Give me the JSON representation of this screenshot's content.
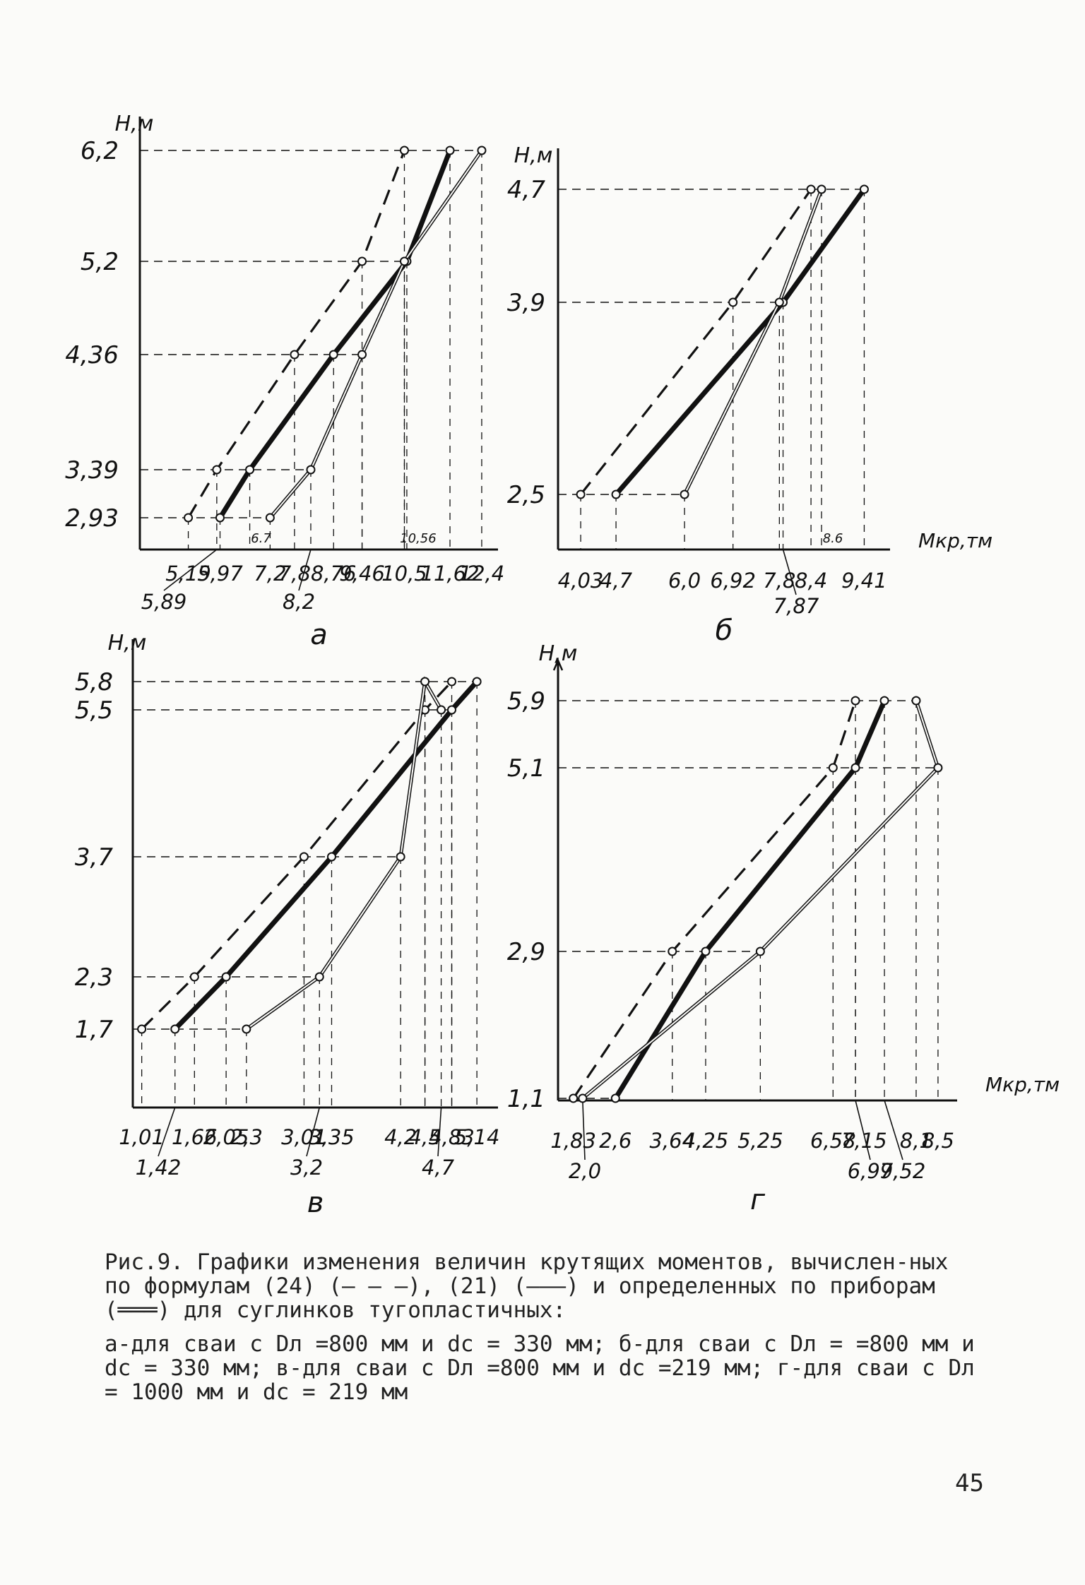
{
  "caption": {
    "line1": "Рис.9. Графики изменения величин крутящих моментов, вычислен-ных по формулам (24) (— — —), (21) (———) и определенных по приборам (═══) для суглинков тугопластичных:",
    "line2": "а-для сваи с Dл =800 мм и dс = 330 мм; б-для сваи с Dл = =800 мм и dс = 330 мм; в-для сваи с Dл =800 мм и dс =219 мм; г-для сваи с Dл = 1000 мм и dс = 219 мм"
  },
  "page_number": "45",
  "colors": {
    "ink": "#111111",
    "paper": "#fbfbf9"
  },
  "chart_data": [
    {
      "type": "line",
      "panel_label": "а",
      "ylabel": "Н,м",
      "xlabel": "",
      "yticks": [
        "6,2",
        "5,2",
        "4,36",
        "3,39",
        "2,93"
      ],
      "xticks_row1": [
        "5,19",
        "5,97",
        "7,2",
        "7,8",
        "8,76",
        "9,46",
        "10,5",
        "11,62",
        "12,4"
      ],
      "xticks_row2": [
        "5,89",
        "8,2"
      ],
      "inner_labels": [
        "6.7",
        "10,56"
      ],
      "series": [
        {
          "style": "dashed",
          "points": [
            [
              5.19,
              2.93
            ],
            [
              5.89,
              3.39
            ],
            [
              7.8,
              4.36
            ],
            [
              9.46,
              5.2
            ],
            [
              10.5,
              6.2
            ]
          ]
        },
        {
          "style": "thick",
          "points": [
            [
              5.97,
              2.93
            ],
            [
              6.7,
              3.39
            ],
            [
              8.76,
              4.36
            ],
            [
              10.56,
              5.2
            ],
            [
              11.62,
              6.2
            ]
          ]
        },
        {
          "style": "double",
          "points": [
            [
              7.2,
              2.93
            ],
            [
              8.2,
              3.39
            ],
            [
              9.46,
              4.36
            ],
            [
              10.5,
              5.2
            ],
            [
              12.4,
              6.2
            ]
          ]
        }
      ]
    },
    {
      "type": "line",
      "panel_label": "б",
      "ylabel": "Н,м",
      "xlabel": "Mкр,тм",
      "yticks": [
        "4,7",
        "3,9",
        "2,5"
      ],
      "xticks_row1": [
        "4,03",
        "4,7",
        "6,0",
        "6,92",
        "7,8",
        "8,4",
        "9,41"
      ],
      "xticks_row2": [
        "7,87"
      ],
      "inner_labels": [
        "8.6"
      ],
      "series": [
        {
          "style": "dashed",
          "points": [
            [
              4.03,
              2.5
            ],
            [
              6.92,
              3.9
            ],
            [
              8.4,
              4.7
            ]
          ]
        },
        {
          "style": "thick",
          "points": [
            [
              4.7,
              2.5
            ],
            [
              7.87,
              3.9
            ],
            [
              9.41,
              4.7
            ]
          ]
        },
        {
          "style": "double",
          "points": [
            [
              6.0,
              2.5
            ],
            [
              7.8,
              3.9
            ],
            [
              8.6,
              4.7
            ]
          ]
        }
      ]
    },
    {
      "type": "line",
      "panel_label": "в",
      "ylabel": "Н,м",
      "xlabel": "",
      "yticks": [
        "5,8",
        "5,5",
        "3,7",
        "2,3",
        "1,7"
      ],
      "xticks_row1": [
        "1,01",
        "1,66",
        "2,05",
        "2,3",
        "3,01",
        "3,35",
        "4,2",
        "4,5",
        "4,83",
        "5,14"
      ],
      "xticks_row2": [
        "1,42",
        "3,2",
        "4,7"
      ],
      "inner_labels": [],
      "series": [
        {
          "style": "dashed",
          "points": [
            [
              1.01,
              1.7
            ],
            [
              1.66,
              2.3
            ],
            [
              3.01,
              3.7
            ],
            [
              4.5,
              5.5
            ],
            [
              4.83,
              5.8
            ]
          ]
        },
        {
          "style": "thick",
          "points": [
            [
              1.42,
              1.7
            ],
            [
              2.05,
              2.3
            ],
            [
              3.35,
              3.7
            ],
            [
              4.83,
              5.5
            ],
            [
              5.14,
              5.8
            ]
          ]
        },
        {
          "style": "double",
          "points": [
            [
              2.3,
              1.7
            ],
            [
              3.2,
              2.3
            ],
            [
              4.2,
              3.7
            ],
            [
              4.5,
              5.8
            ],
            [
              4.7,
              5.5
            ]
          ]
        }
      ]
    },
    {
      "type": "line",
      "panel_label": "г",
      "ylabel": "Н,м",
      "xlabel": "Mкр,тм",
      "yticks": [
        "5,9",
        "5,1",
        "2,9",
        "1,1"
      ],
      "xticks_row1": [
        "1,83",
        "2,6",
        "3,64",
        "4,25",
        "5,25",
        "6,58",
        "7,15",
        "8,1",
        "8,5"
      ],
      "xticks_row2": [
        "2,0",
        "6,99",
        "7,52"
      ],
      "inner_labels": [],
      "series": [
        {
          "style": "dashed",
          "points": [
            [
              1.83,
              1.1
            ],
            [
              3.64,
              2.9
            ],
            [
              6.58,
              5.1
            ],
            [
              6.99,
              5.9
            ]
          ]
        },
        {
          "style": "thick",
          "points": [
            [
              2.6,
              1.1
            ],
            [
              4.25,
              2.9
            ],
            [
              6.99,
              5.1
            ],
            [
              7.52,
              5.9
            ]
          ]
        },
        {
          "style": "double",
          "points": [
            [
              2.0,
              1.1
            ],
            [
              5.25,
              2.9
            ],
            [
              8.5,
              5.1
            ],
            [
              8.1,
              5.9
            ]
          ]
        }
      ]
    }
  ]
}
